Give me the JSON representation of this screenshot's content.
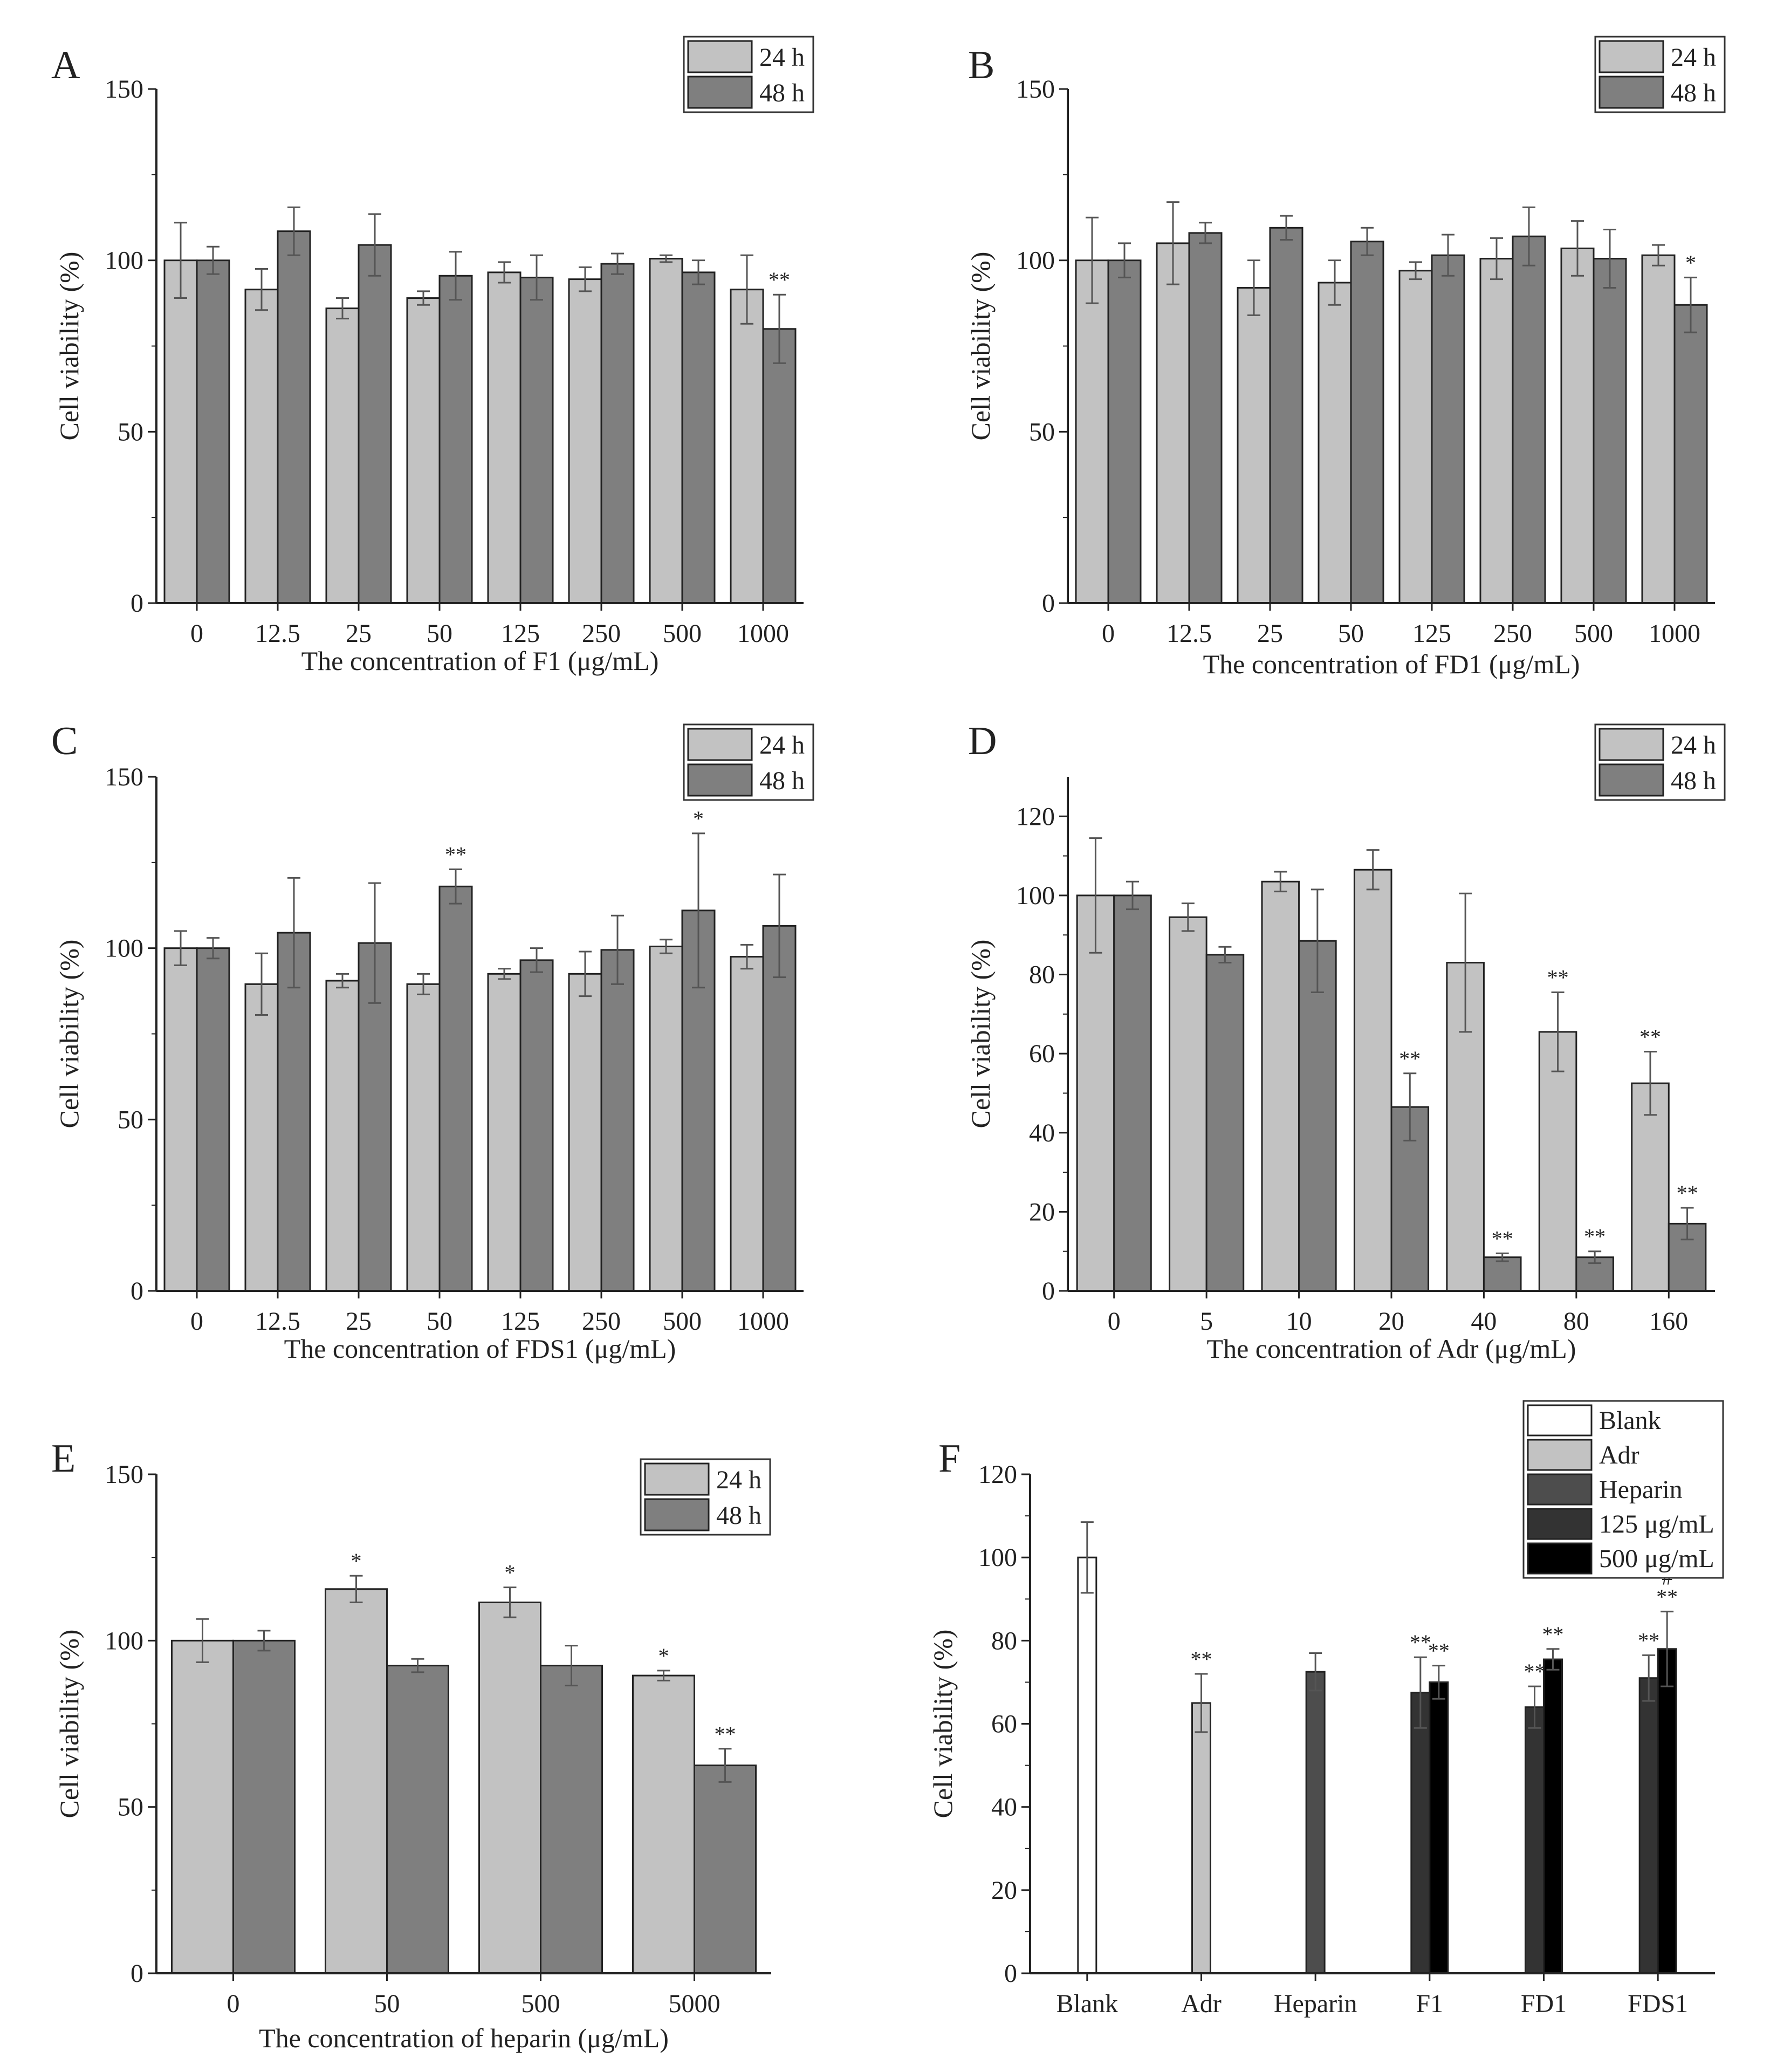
{
  "figure": {
    "panels": [
      "A",
      "B",
      "C",
      "D",
      "E",
      "F"
    ]
  },
  "colors": {
    "h24": "#c2c2c2",
    "h48": "#7f7f7f",
    "blank": "#ffffff",
    "adr": "#c2c2c2",
    "heparin": "#4d4d4d",
    "c125": "#333333",
    "c500": "#000000",
    "axis": "#222222"
  },
  "chart_data": [
    {
      "panel": "A",
      "type": "bar",
      "title": "",
      "xlabel": "The concentration of F1 (μg/mL)",
      "ylabel": "Cell viability (%)",
      "ylim": [
        0,
        150
      ],
      "yticks": [
        "0",
        "50",
        "100",
        "150"
      ],
      "legend_position": "top-right",
      "categories": [
        "0",
        "12.5",
        "25",
        "50",
        "125",
        "250",
        "500",
        "1000"
      ],
      "series": [
        {
          "name": "24 h",
          "color": "h24",
          "values": [
            100,
            91.5,
            86,
            89,
            96.5,
            94.5,
            100.5,
            91.5
          ],
          "errors": [
            11,
            6,
            3,
            2,
            3,
            3.5,
            1,
            10
          ],
          "sig": [
            "",
            "",
            "",
            "",
            "",
            "",
            "",
            ""
          ]
        },
        {
          "name": "48 h",
          "color": "h48",
          "values": [
            100,
            108.5,
            104.5,
            95.5,
            95,
            99,
            96.5,
            80
          ],
          "errors": [
            4,
            7,
            9,
            7,
            6.5,
            3,
            3.5,
            10
          ],
          "sig": [
            "",
            "",
            "",
            "",
            "",
            "",
            "",
            "**"
          ]
        }
      ]
    },
    {
      "panel": "B",
      "type": "bar",
      "title": "",
      "xlabel": "The concentration of FD1 (μg/mL)",
      "ylabel": "Cell viability (%)",
      "ylim": [
        0,
        150
      ],
      "yticks": [
        "0",
        "50",
        "100",
        "150"
      ],
      "legend_position": "top-right",
      "categories": [
        "0",
        "12.5",
        "25",
        "50",
        "125",
        "250",
        "500",
        "1000"
      ],
      "series": [
        {
          "name": "24 h",
          "color": "h24",
          "values": [
            100,
            105,
            92,
            93.5,
            97,
            100.5,
            103.5,
            101.5
          ],
          "errors": [
            12.5,
            12,
            8,
            6.5,
            2.5,
            6,
            8,
            3
          ],
          "sig": [
            "",
            "",
            "",
            "",
            "",
            "",
            "",
            ""
          ]
        },
        {
          "name": "48 h",
          "color": "h48",
          "values": [
            100,
            108,
            109.5,
            105.5,
            101.5,
            107,
            100.5,
            87
          ],
          "errors": [
            5,
            3,
            3.5,
            4,
            6,
            8.5,
            8.5,
            8
          ],
          "sig": [
            "",
            "",
            "",
            "",
            "",
            "",
            "",
            "*"
          ]
        }
      ]
    },
    {
      "panel": "C",
      "type": "bar",
      "title": "",
      "xlabel": "The concentration of FDS1 (μg/mL)",
      "ylabel": "Cell viability (%)",
      "ylim": [
        0,
        150
      ],
      "yticks": [
        "0",
        "50",
        "100",
        "150"
      ],
      "legend_position": "top-right",
      "categories": [
        "0",
        "12.5",
        "25",
        "50",
        "125",
        "250",
        "500",
        "1000"
      ],
      "series": [
        {
          "name": "24 h",
          "color": "h24",
          "values": [
            100,
            89.5,
            90.5,
            89.5,
            92.5,
            92.5,
            100.5,
            97.5
          ],
          "errors": [
            5,
            9,
            2,
            3,
            1.5,
            6.5,
            2,
            3.5
          ],
          "sig": [
            "",
            "",
            "",
            "",
            "",
            "",
            "",
            ""
          ]
        },
        {
          "name": "48 h",
          "color": "h48",
          "values": [
            100,
            104.5,
            101.5,
            118,
            96.5,
            99.5,
            111,
            106.5
          ],
          "errors": [
            3,
            16,
            17.5,
            5,
            3.5,
            10,
            22.5,
            15
          ],
          "sig": [
            "",
            "",
            "",
            "**",
            "",
            "",
            "*",
            ""
          ]
        }
      ]
    },
    {
      "panel": "D",
      "type": "bar",
      "title": "",
      "xlabel": "The concentration of Adr (μg/mL)",
      "ylabel": "Cell viability (%)",
      "ylim": [
        0,
        130
      ],
      "yticks": [
        "0",
        "20",
        "40",
        "60",
        "80",
        "100",
        "120"
      ],
      "legend_position": "top-right",
      "categories": [
        "0",
        "5",
        "10",
        "20",
        "40",
        "80",
        "160"
      ],
      "series": [
        {
          "name": "24 h",
          "color": "h24",
          "values": [
            100,
            94.5,
            103.5,
            106.5,
            83,
            65.5,
            52.5
          ],
          "errors": [
            14.5,
            3.5,
            2.5,
            5,
            17.5,
            10,
            8
          ],
          "sig": [
            "",
            "",
            "",
            "",
            "",
            "**",
            "**"
          ]
        },
        {
          "name": "48 h",
          "color": "h48",
          "values": [
            100,
            85,
            88.5,
            46.5,
            8.5,
            8.5,
            17
          ],
          "errors": [
            3.5,
            2,
            13,
            8.5,
            1,
            1.5,
            4
          ],
          "sig": [
            "",
            "",
            "",
            "**",
            "**",
            "**",
            "**"
          ]
        }
      ]
    },
    {
      "panel": "E",
      "type": "bar",
      "title": "",
      "xlabel": "The concentration of heparin (μg/mL)",
      "ylabel": "Cell viability (%)",
      "ylim": [
        0,
        150
      ],
      "yticks": [
        "0",
        "50",
        "100",
        "150"
      ],
      "legend_position": "top-right",
      "categories": [
        "0",
        "50",
        "500",
        "5000"
      ],
      "series": [
        {
          "name": "24 h",
          "color": "h24",
          "values": [
            100,
            115.5,
            111.5,
            89.5
          ],
          "errors": [
            6.5,
            4,
            4.5,
            1.5
          ],
          "sig": [
            "",
            "*",
            "*",
            "*"
          ]
        },
        {
          "name": "48 h",
          "color": "h48",
          "values": [
            100,
            92.5,
            92.5,
            62.5
          ],
          "errors": [
            3,
            2,
            6,
            5
          ],
          "sig": [
            "",
            "",
            "",
            "**"
          ]
        }
      ]
    },
    {
      "panel": "F",
      "type": "bar",
      "title": "",
      "xlabel": "",
      "ylabel": "Cell viability (%)",
      "ylim": [
        0,
        120
      ],
      "yticks": [
        "0",
        "20",
        "40",
        "60",
        "80",
        "100",
        "120"
      ],
      "legend_position": "top-right",
      "categories": [
        "Blank",
        "Adr",
        "Heparin",
        "F1",
        "FD1",
        "FDS1"
      ],
      "legend": [
        {
          "name": "Blank",
          "color": "blank"
        },
        {
          "name": "Adr",
          "color": "adr"
        },
        {
          "name": "Heparin",
          "color": "heparin"
        },
        {
          "name": "125 μg/mL",
          "color": "c125"
        },
        {
          "name": "500 μg/mL",
          "color": "c500"
        }
      ],
      "bars": [
        {
          "category": "Blank",
          "series": "Blank",
          "color": "blank",
          "value": 100,
          "error": 8.5,
          "sig": ""
        },
        {
          "category": "Adr",
          "series": "Adr",
          "color": "adr",
          "value": 65,
          "error": 7,
          "sig": "**"
        },
        {
          "category": "Heparin",
          "series": "Heparin",
          "color": "heparin",
          "value": 72.5,
          "error": 4.5,
          "sig": ""
        },
        {
          "category": "F1",
          "series": "125 μg/mL",
          "color": "c125",
          "value": 67.5,
          "error": 8.5,
          "sig": "**"
        },
        {
          "category": "F1",
          "series": "500 μg/mL",
          "color": "c500",
          "value": 70,
          "error": 4,
          "sig": "**"
        },
        {
          "category": "FD1",
          "series": "125 μg/mL",
          "color": "c125",
          "value": 64,
          "error": 5,
          "sig": "**"
        },
        {
          "category": "FD1",
          "series": "500 μg/mL",
          "color": "c500",
          "value": 75.5,
          "error": 2.5,
          "sig": "**"
        },
        {
          "category": "FDS1",
          "series": "125 μg/mL",
          "color": "c125",
          "value": 71,
          "error": 5.5,
          "sig": "**"
        },
        {
          "category": "FDS1",
          "series": "500 μg/mL",
          "color": "c500",
          "value": 78,
          "error": 9,
          "sig": "#\n**"
        }
      ]
    }
  ]
}
